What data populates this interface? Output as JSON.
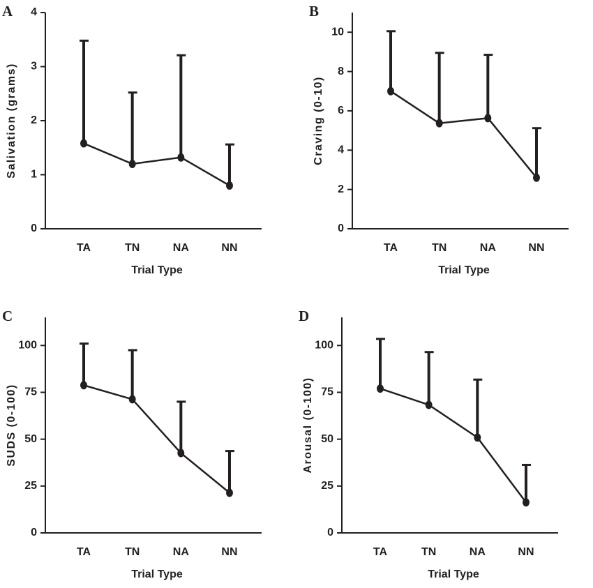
{
  "chart_data": [
    {
      "type": "line",
      "panel": "A",
      "y_label": "Salivation (grams)",
      "x_label": "Trial Type",
      "categories": [
        "TA",
        "TN",
        "NA",
        "NN"
      ],
      "values": [
        1.58,
        1.2,
        1.32,
        0.8
      ],
      "errors": [
        1.9,
        1.32,
        1.89,
        0.76
      ],
      "ylim": [
        0,
        4
      ],
      "yticks": [
        0,
        1,
        2,
        3,
        4
      ],
      "color": "#231f20"
    },
    {
      "type": "line",
      "panel": "B",
      "y_label": "Craving (0-10)",
      "x_label": "Trial Type",
      "categories": [
        "TA",
        "TN",
        "NA",
        "NN"
      ],
      "values": [
        7.0,
        5.37,
        5.63,
        2.6
      ],
      "errors": [
        3.05,
        3.58,
        3.22,
        2.52
      ],
      "ylim": [
        0,
        11
      ],
      "yticks": [
        0,
        2,
        4,
        6,
        8,
        10
      ],
      "color": "#231f20"
    },
    {
      "type": "line",
      "panel": "C",
      "y_label": "SUDS (0-100)",
      "x_label": "Trial Type",
      "categories": [
        "TA",
        "TN",
        "NA",
        "NN"
      ],
      "values": [
        78.8,
        71.3,
        42.6,
        21.4
      ],
      "errors": [
        22.2,
        26.2,
        27.4,
        22.3
      ],
      "ylim": [
        0,
        115
      ],
      "yticks": [
        0,
        25,
        50,
        75,
        100
      ],
      "color": "#231f20"
    },
    {
      "type": "line",
      "panel": "D",
      "y_label": "Arousal (0-100)",
      "x_label": "Trial Type",
      "categories": [
        "TA",
        "TN",
        "NA",
        "NN"
      ],
      "values": [
        77.0,
        68.3,
        50.9,
        16.3
      ],
      "errors": [
        26.5,
        28.2,
        30.9,
        20.0
      ],
      "ylim": [
        0,
        115
      ],
      "yticks": [
        0,
        25,
        50,
        75,
        100
      ],
      "color": "#231f20"
    }
  ]
}
